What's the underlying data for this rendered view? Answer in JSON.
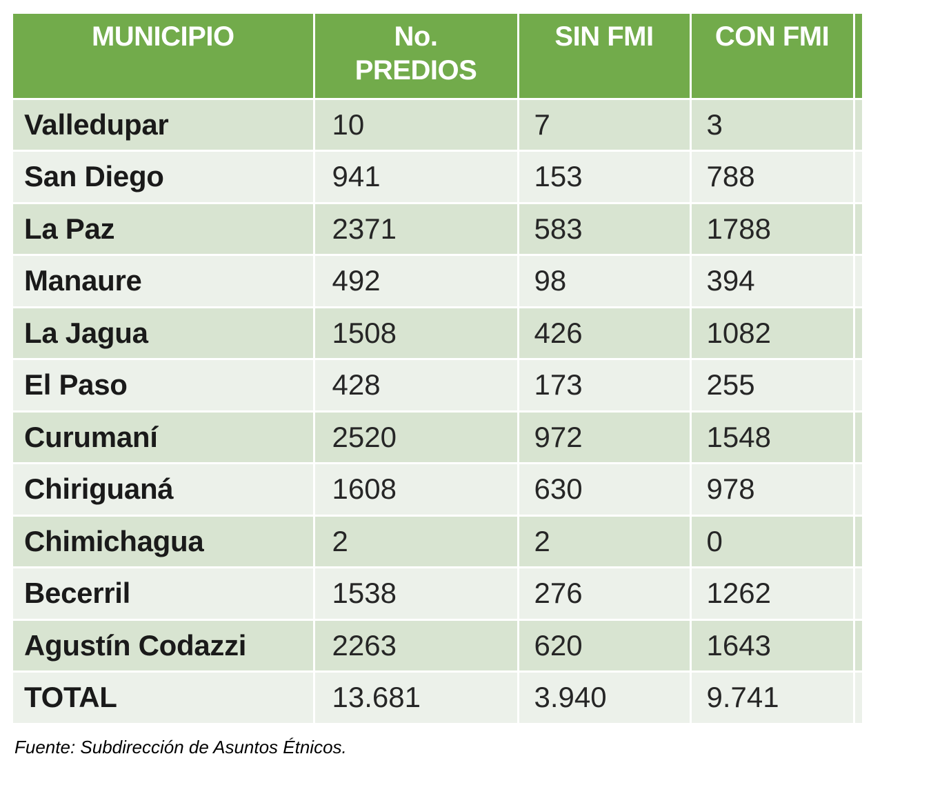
{
  "table": {
    "headers": {
      "municipio": "MUNICIPIO",
      "predios_line1": "No.",
      "predios_line2": "PREDIOS",
      "sin_fmi": "SIN FMI",
      "con_fmi": "CON FMI"
    },
    "rows": [
      {
        "municipio": "Valledupar",
        "predios": "10",
        "sin_fmi": "7",
        "con_fmi": "3"
      },
      {
        "municipio": "San Diego",
        "predios": "941",
        "sin_fmi": "153",
        "con_fmi": "788"
      },
      {
        "municipio": "La Paz",
        "predios": "2371",
        "sin_fmi": "583",
        "con_fmi": "1788"
      },
      {
        "municipio": "Manaure",
        "predios": "492",
        "sin_fmi": "98",
        "con_fmi": "394"
      },
      {
        "municipio": "La Jagua",
        "predios": "1508",
        "sin_fmi": "426",
        "con_fmi": "1082"
      },
      {
        "municipio": "El Paso",
        "predios": "428",
        "sin_fmi": "173",
        "con_fmi": "255"
      },
      {
        "municipio": "Curumaní",
        "predios": "2520",
        "sin_fmi": "972",
        "con_fmi": "1548"
      },
      {
        "municipio": "Chiriguaná",
        "predios": "1608",
        "sin_fmi": "630",
        "con_fmi": "978"
      },
      {
        "municipio": "Chimichagua",
        "predios": "2",
        "sin_fmi": "2",
        "con_fmi": "0"
      },
      {
        "municipio": "Becerril",
        "predios": "1538",
        "sin_fmi": "276",
        "con_fmi": "1262"
      },
      {
        "municipio": "Agustín Codazzi",
        "predios": "2263",
        "sin_fmi": "620",
        "con_fmi": "1643"
      },
      {
        "municipio": "TOTAL",
        "predios": "13.681",
        "sin_fmi": "3.940",
        "con_fmi": "9.741"
      }
    ]
  },
  "source_note": "Fuente: Subdirección de Asuntos Étnicos.",
  "colors": {
    "header_bg": "#72ab4b",
    "row_dark": "#d8e4d1",
    "row_light": "#ecf1ea"
  }
}
